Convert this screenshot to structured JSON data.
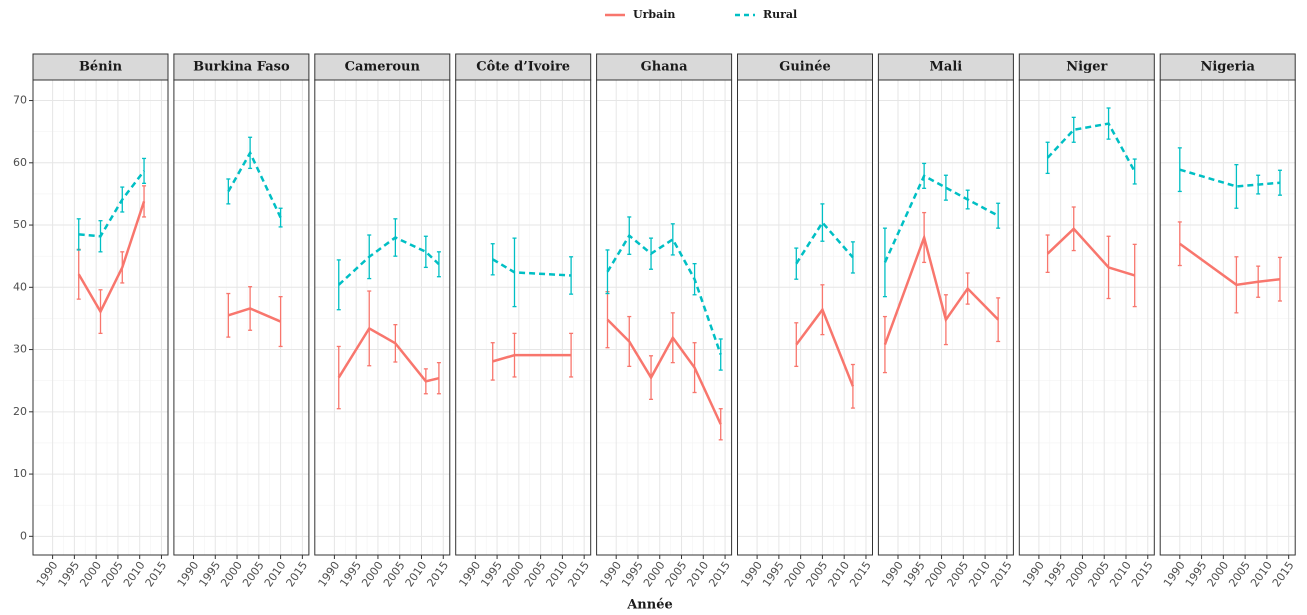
{
  "chart_data": {
    "type": "line",
    "legend": [
      {
        "name": "Urbain",
        "color": "#F8766D",
        "dash": false
      },
      {
        "name": "Rural",
        "color": "#00BFC4",
        "dash": true
      }
    ],
    "xlabel": "Année",
    "xlim": [
      1985.5,
      2016.5
    ],
    "xticks": [
      1990,
      1995,
      2000,
      2005,
      2010,
      2015
    ],
    "ylim": [
      -3,
      73.3
    ],
    "yticks": [
      0,
      10,
      20,
      30,
      40,
      50,
      60,
      70
    ],
    "grid": true,
    "facets": [
      {
        "title": "Bénin",
        "series": [
          {
            "x": [
              1996,
              2001,
              2006,
              2011
            ],
            "values": [
              42.1,
              36.1,
              43.2,
              53.8
            ],
            "errors": [
              4,
              3.5,
              2.5,
              2.5
            ]
          },
          {
            "x": [
              1996,
              2001,
              2006,
              2011
            ],
            "values": [
              48.5,
              48.2,
              54.1,
              58.7
            ],
            "errors": [
              2.5,
              2.5,
              2,
              2
            ]
          }
        ]
      },
      {
        "title": "Burkina Faso",
        "series": [
          {
            "x": [
              1998,
              2003,
              2010
            ],
            "values": [
              35.5,
              36.6,
              34.5
            ],
            "errors": [
              3.5,
              3.5,
              4
            ]
          },
          {
            "x": [
              1998,
              2003,
              2010
            ],
            "values": [
              55.4,
              61.6,
              51.2
            ],
            "errors": [
              2,
              2.5,
              1.5
            ]
          }
        ]
      },
      {
        "title": "Cameroun",
        "series": [
          {
            "x": [
              1991,
              1998,
              2004,
              2011,
              2014
            ],
            "values": [
              25.5,
              33.4,
              31.0,
              24.9,
              25.4
            ],
            "errors": [
              5,
              6,
              3,
              2,
              2.5
            ]
          },
          {
            "x": [
              1991,
              1998,
              2004,
              2011,
              2014
            ],
            "values": [
              40.4,
              44.9,
              48.0,
              45.7,
              43.7
            ],
            "errors": [
              4,
              3.5,
              3,
              2.5,
              2
            ]
          }
        ]
      },
      {
        "title": "Côte d’Ivoire",
        "series": [
          {
            "x": [
              1994,
              1999,
              2012
            ],
            "values": [
              28.1,
              29.1,
              29.1
            ],
            "errors": [
              3,
              3.5,
              3.5
            ]
          },
          {
            "x": [
              1994,
              1999,
              2012
            ],
            "values": [
              44.5,
              42.4,
              41.9
            ],
            "errors": [
              2.5,
              5.5,
              3
            ]
          }
        ]
      },
      {
        "title": "Ghana",
        "series": [
          {
            "x": [
              1988,
              1993,
              1998,
              2003,
              2008,
              2014
            ],
            "values": [
              34.8,
              31.3,
              25.5,
              31.9,
              27.1,
              18.0
            ],
            "errors": [
              4.5,
              4,
              3.5,
              4,
              4,
              2.5
            ]
          },
          {
            "x": [
              1988,
              1993,
              1998,
              2003,
              2008,
              2014
            ],
            "values": [
              42.5,
              48.3,
              45.4,
              47.7,
              41.3,
              29.2
            ],
            "errors": [
              3.5,
              3,
              2.5,
              2.5,
              2.5,
              2.5
            ]
          }
        ]
      },
      {
        "title": "Guinée",
        "series": [
          {
            "x": [
              1999,
              2005,
              2012
            ],
            "values": [
              30.8,
              36.4,
              24.1
            ],
            "errors": [
              3.5,
              4,
              3.5
            ]
          },
          {
            "x": [
              1999,
              2005,
              2012
            ],
            "values": [
              43.8,
              50.4,
              44.8
            ],
            "errors": [
              2.5,
              3,
              2.5
            ]
          }
        ]
      },
      {
        "title": "Mali",
        "series": [
          {
            "x": [
              1987,
              1996,
              2001,
              2006,
              2013
            ],
            "values": [
              30.8,
              48.0,
              34.8,
              39.8,
              34.8
            ],
            "errors": [
              4.5,
              4,
              4,
              2.5,
              3.5
            ]
          },
          {
            "x": [
              1987,
              1996,
              2001,
              2006,
              2013
            ],
            "values": [
              44.0,
              57.9,
              56.0,
              54.1,
              51.5
            ],
            "errors": [
              5.5,
              2,
              2,
              1.5,
              2
            ]
          }
        ]
      },
      {
        "title": "Niger",
        "series": [
          {
            "x": [
              1992,
              1998,
              2006,
              2012
            ],
            "values": [
              45.4,
              49.4,
              43.2,
              41.9
            ],
            "errors": [
              3,
              3.5,
              5,
              5
            ]
          },
          {
            "x": [
              1992,
              1998,
              2006,
              2012
            ],
            "values": [
              60.8,
              65.3,
              66.3,
              58.6
            ],
            "errors": [
              2.5,
              2,
              2.5,
              2
            ]
          }
        ]
      },
      {
        "title": "Nigeria",
        "series": [
          {
            "x": [
              1990,
              2003,
              2008,
              2013
            ],
            "values": [
              47.0,
              40.4,
              40.9,
              41.3
            ],
            "errors": [
              3.5,
              4.5,
              2.5,
              3.5
            ]
          },
          {
            "x": [
              1990,
              2003,
              2008,
              2013
            ],
            "values": [
              58.9,
              56.2,
              56.5,
              56.8
            ],
            "errors": [
              3.5,
              3.5,
              1.5,
              2
            ]
          }
        ]
      }
    ]
  }
}
